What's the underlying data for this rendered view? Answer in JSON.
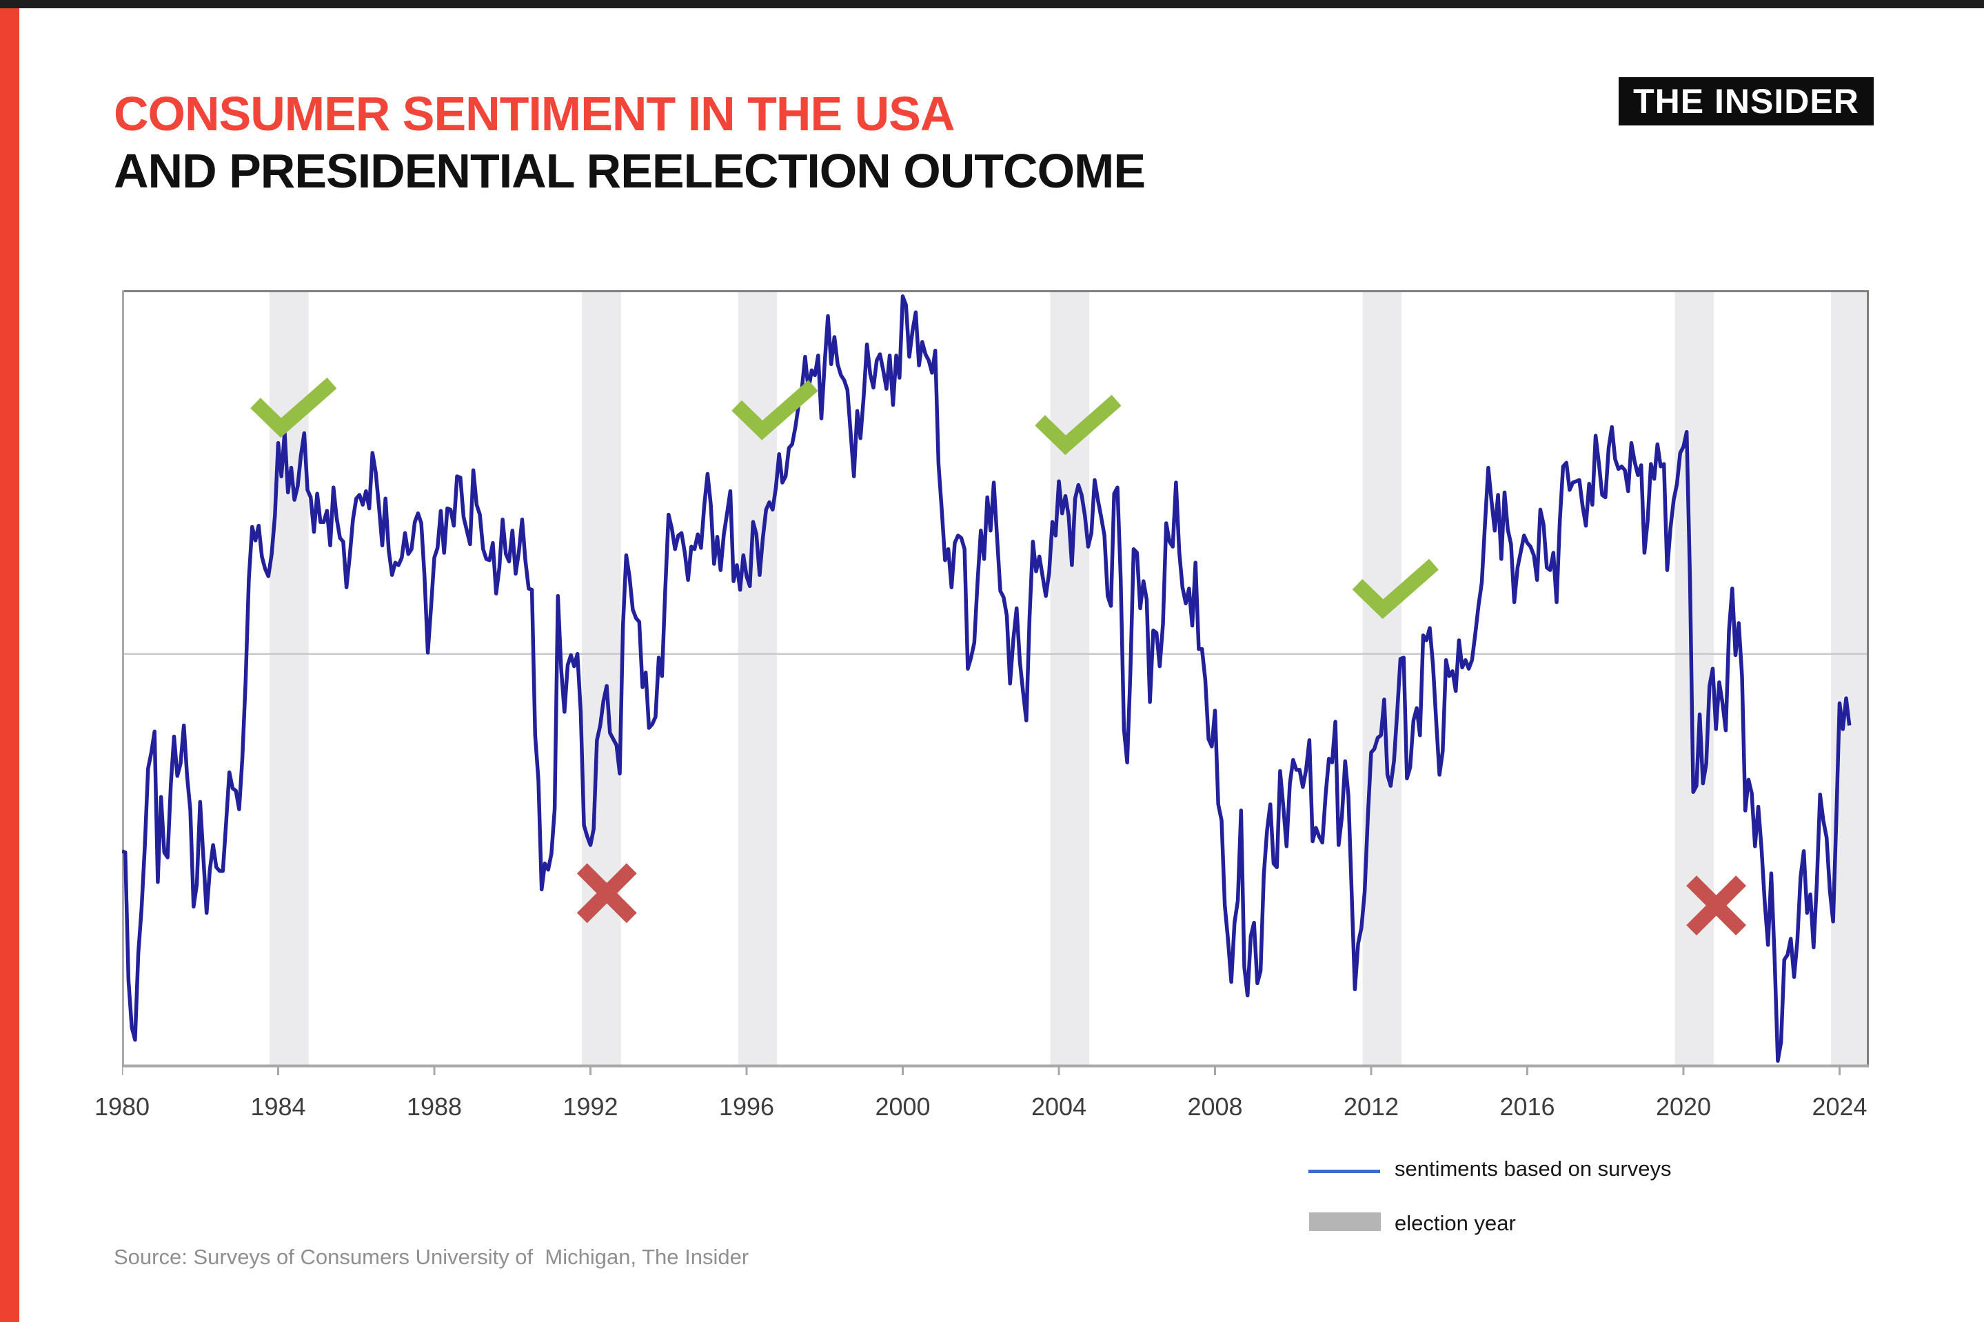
{
  "page": {
    "brand": "THE INSIDER",
    "title_line1": "CONSUMER SENTIMENT IN THE USA",
    "title_line2": "AND PRESIDENTIAL REELECTION OUTCOME",
    "source": "Source: Surveys of Consumers University of  Michigan, The Insider",
    "accent_red": "#ef4130",
    "title_red": "#f2453a",
    "title_black": "#111111"
  },
  "legend": {
    "line_label": "sentiments based on surveys",
    "band_label": "election year",
    "line_color": "#3a6ad1",
    "band_color": "#b5b5b5"
  },
  "chart_data": {
    "type": "line",
    "title": "Consumer sentiment in the USA and presidential reelection outcome",
    "x_axis": "years, monthly points Jan 1980 - Apr 2024",
    "tick_years": [
      1980,
      1984,
      1988,
      1992,
      1996,
      2000,
      2004,
      2008,
      2012,
      2016,
      2020,
      2024
    ],
    "election_years": [
      1984,
      1992,
      1996,
      2004,
      2012,
      2020,
      2024
    ],
    "reelection_marks": [
      {
        "election_year": 1984,
        "outcome": "reelected",
        "icon": "checkmark",
        "x_year": 1984.37,
        "value": 102.9
      },
      {
        "election_year": 1992,
        "outcome": "lost",
        "icon": "cross",
        "x_year": 1992.42,
        "value": 63.6
      },
      {
        "election_year": 1996,
        "outcome": "reelected",
        "icon": "checkmark",
        "x_year": 1996.7,
        "value": 102.7
      },
      {
        "election_year": 2004,
        "outcome": "reelected",
        "icon": "checkmark",
        "x_year": 2004.47,
        "value": 101.5
      },
      {
        "election_year": 2012,
        "outcome": "reelected",
        "icon": "checkmark",
        "x_year": 2012.6,
        "value": 88.2
      },
      {
        "election_year": 2020,
        "outcome": "lost",
        "icon": "cross",
        "x_year": 2020.84,
        "value": 62.6
      }
    ],
    "series": [
      {
        "name": "sentiments based on surveys",
        "start_year": 1980,
        "points_per_year": 12,
        "values_by_year": [
          [
            67.0,
            66.9,
            56.5,
            52.7,
            51.7,
            58.7,
            62.3,
            67.3,
            73.7,
            75.0,
            76.7,
            64.5
          ],
          [
            71.4,
            66.9,
            66.5,
            72.4,
            76.3,
            73.1,
            74.1,
            77.2,
            73.1,
            70.3,
            62.5,
            64.3
          ],
          [
            71.0,
            66.5,
            62.0,
            65.5,
            67.5,
            65.7,
            65.4,
            65.4,
            69.3,
            73.4,
            72.1,
            71.9
          ],
          [
            70.4,
            74.6,
            80.8,
            89.1,
            93.3,
            92.2,
            93.4,
            90.9,
            89.9,
            89.3,
            91.1,
            94.2
          ],
          [
            100.1,
            97.4,
            101.0,
            96.1,
            98.1,
            95.5,
            96.6,
            99.1,
            100.9,
            96.3,
            95.7,
            92.9
          ],
          [
            96.0,
            93.7,
            93.7,
            94.6,
            91.8,
            96.5,
            94.0,
            92.4,
            92.1,
            88.4,
            90.9,
            93.9
          ],
          [
            95.6,
            95.9,
            95.1,
            96.2,
            94.8,
            99.3,
            97.7,
            94.9,
            91.8,
            95.6,
            91.4,
            89.4
          ],
          [
            90.4,
            90.2,
            90.8,
            92.8,
            91.1,
            91.5,
            93.7,
            94.4,
            93.6,
            89.3,
            83.1,
            86.8
          ],
          [
            90.8,
            91.6,
            94.6,
            91.2,
            94.8,
            94.7,
            93.4,
            97.4,
            97.3,
            94.1,
            93.0,
            91.9
          ],
          [
            97.9,
            95.1,
            94.3,
            91.5,
            90.7,
            90.6,
            92.0,
            87.9,
            90.0,
            93.9,
            91.1,
            90.5
          ],
          [
            93.0,
            89.5,
            91.3,
            93.9,
            90.6,
            88.3,
            88.2,
            76.4,
            72.8,
            63.9,
            66.0,
            65.5
          ],
          [
            66.8,
            70.4,
            87.7,
            81.8,
            78.3,
            82.1,
            82.9,
            82.0,
            83.0,
            78.3,
            69.1,
            68.2
          ],
          [
            67.5,
            68.8,
            76.0,
            77.2,
            79.2,
            80.4,
            76.6,
            76.1,
            75.6,
            73.3,
            85.3,
            91.0
          ],
          [
            89.3,
            86.6,
            85.9,
            85.6,
            80.3,
            81.5,
            77.0,
            77.3,
            77.9,
            82.7,
            81.2,
            88.2
          ],
          [
            94.3,
            93.2,
            91.5,
            92.6,
            92.8,
            91.2,
            89.0,
            91.7,
            91.5,
            92.7,
            91.6,
            95.1
          ],
          [
            97.6,
            95.1,
            90.3,
            92.5,
            89.8,
            92.7,
            94.4,
            96.2,
            88.9,
            90.2,
            88.2,
            91.0
          ],
          [
            89.3,
            88.5,
            93.7,
            92.7,
            89.4,
            92.4,
            94.7,
            95.3,
            94.7,
            96.5,
            99.2,
            96.9
          ],
          [
            97.4,
            99.7,
            100.0,
            101.4,
            103.2,
            104.5,
            107.1,
            104.4,
            106.0,
            105.6,
            107.2,
            102.1
          ],
          [
            106.6,
            110.4,
            106.5,
            108.7,
            106.5,
            105.6,
            105.2,
            104.4,
            100.9,
            97.4,
            102.7,
            100.5
          ],
          [
            103.9,
            108.1,
            105.7,
            104.6,
            106.8,
            107.3,
            106.0,
            104.5,
            107.2,
            103.2,
            107.2,
            105.4
          ],
          [
            112.0,
            111.3,
            107.1,
            109.2,
            110.7,
            106.4,
            108.3,
            107.3,
            106.8,
            105.8,
            107.6,
            98.4
          ],
          [
            94.7,
            90.6,
            91.5,
            88.4,
            92.0,
            92.6,
            92.4,
            91.5,
            81.8,
            82.7,
            83.9,
            88.8
          ],
          [
            93.0,
            90.7,
            95.7,
            93.0,
            96.9,
            92.4,
            88.1,
            87.6,
            86.1,
            80.6,
            84.2,
            86.7
          ],
          [
            82.4,
            79.9,
            77.6,
            86.0,
            92.1,
            89.7,
            90.9,
            89.3,
            87.7,
            89.6,
            93.7,
            92.6
          ],
          [
            97.0,
            94.4,
            95.8,
            94.2,
            90.2,
            95.6,
            96.7,
            95.9,
            94.2,
            91.7,
            92.8,
            97.1
          ],
          [
            95.5,
            94.1,
            92.6,
            87.7,
            86.9,
            96.0,
            96.5,
            89.1,
            76.9,
            74.2,
            81.6,
            91.5
          ],
          [
            91.2,
            86.7,
            88.9,
            87.4,
            79.1,
            84.9,
            84.7,
            82.0,
            85.4,
            93.6,
            92.1,
            91.7
          ],
          [
            96.9,
            91.3,
            88.4,
            87.1,
            88.3,
            85.3,
            90.4,
            83.4,
            83.4,
            80.9,
            76.1,
            75.5
          ],
          [
            78.4,
            70.8,
            69.5,
            62.6,
            59.8,
            56.4,
            61.2,
            63.0,
            70.3,
            57.6,
            55.3,
            60.1
          ],
          [
            61.2,
            56.3,
            57.3,
            65.1,
            68.7,
            70.8,
            66.0,
            65.7,
            73.5,
            70.6,
            67.4,
            72.5
          ],
          [
            74.4,
            73.6,
            73.6,
            72.2,
            73.6,
            76.0,
            67.8,
            68.9,
            68.2,
            67.7,
            71.6,
            74.5
          ],
          [
            74.2,
            77.5,
            67.5,
            69.8,
            74.3,
            71.5,
            63.7,
            55.8,
            59.5,
            60.8,
            63.7,
            69.9
          ],
          [
            75.0,
            75.3,
            76.2,
            76.4,
            79.3,
            73.2,
            72.3,
            74.3,
            78.3,
            82.6,
            82.7,
            72.9
          ],
          [
            73.8,
            77.6,
            78.6,
            76.4,
            84.5,
            84.1,
            85.1,
            82.1,
            77.5,
            73.2,
            75.1,
            82.5
          ],
          [
            81.2,
            81.6,
            80.0,
            84.1,
            81.9,
            82.5,
            81.8,
            82.5,
            84.6,
            86.9,
            88.8,
            93.6
          ],
          [
            98.1,
            95.4,
            93.0,
            95.9,
            90.7,
            96.1,
            93.1,
            91.9,
            87.2,
            90.0,
            91.3,
            92.6
          ],
          [
            92.0,
            91.7,
            91.0,
            89.0,
            94.7,
            93.5,
            90.0,
            89.8,
            91.2,
            87.2,
            93.8,
            98.2
          ],
          [
            98.5,
            96.3,
            96.9,
            97.0,
            97.1,
            95.0,
            93.4,
            96.8,
            95.1,
            100.7,
            98.5,
            95.9
          ],
          [
            95.7,
            99.7,
            101.4,
            98.8,
            98.0,
            98.2,
            97.9,
            96.2,
            100.1,
            98.6,
            97.5,
            98.3
          ],
          [
            91.2,
            93.8,
            98.4,
            97.2,
            100.0,
            98.2,
            98.4,
            89.8,
            93.2,
            95.5,
            96.8,
            99.3
          ],
          [
            99.8,
            101.0,
            89.1,
            71.8,
            72.3,
            78.1,
            72.5,
            74.1,
            80.4,
            81.8,
            76.9,
            80.7
          ],
          [
            79.0,
            76.8,
            84.9,
            88.3,
            82.9,
            85.5,
            81.2,
            70.3,
            72.8,
            71.7,
            67.4,
            70.6
          ],
          [
            67.2,
            62.8,
            59.4,
            65.2,
            58.4,
            50.0,
            51.5,
            58.2,
            58.6,
            59.9,
            56.8,
            59.7
          ],
          [
            64.9,
            67.0,
            62.0,
            63.5,
            59.2,
            64.4,
            71.6,
            69.5,
            68.1,
            63.8,
            61.3,
            69.7
          ],
          [
            79.0,
            76.9,
            79.4,
            77.2
          ]
        ]
      }
    ],
    "layout": {
      "xlim": [
        1980,
        2024.75
      ],
      "ylim": [
        49.5,
        112.5
      ],
      "gridline_value": 83,
      "y_axis_labels": "none shown",
      "legend_position": "bottom-right",
      "line_color": "#22219b",
      "band_color": "#ebebed",
      "grid_color": "#c9c9c9",
      "border_color": "#8a8a8a",
      "axis_color": "#a8a8a8",
      "tick_label_color": "#3d3d3d",
      "mark_win_color": "#94be44",
      "mark_loss_color": "#c5524e"
    }
  }
}
